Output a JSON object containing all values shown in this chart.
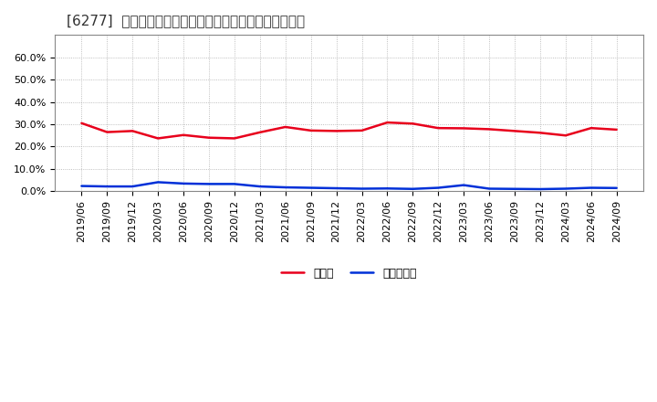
{
  "title": "[6277]  現預金、有利子負債の総資産に対する比率の推移",
  "x_labels": [
    "2019/06",
    "2019/09",
    "2019/12",
    "2020/03",
    "2020/06",
    "2020/09",
    "2020/12",
    "2021/03",
    "2021/06",
    "2021/09",
    "2021/12",
    "2022/03",
    "2022/06",
    "2022/09",
    "2022/12",
    "2023/03",
    "2023/06",
    "2023/09",
    "2023/12",
    "2024/03",
    "2024/06",
    "2024/09"
  ],
  "cash_ratio": [
    0.305,
    0.265,
    0.27,
    0.237,
    0.252,
    0.24,
    0.237,
    0.264,
    0.288,
    0.272,
    0.27,
    0.272,
    0.308,
    0.303,
    0.283,
    0.282,
    0.278,
    0.27,
    0.262,
    0.25,
    0.283,
    0.276
  ],
  "debt_ratio": [
    0.024,
    0.022,
    0.022,
    0.041,
    0.035,
    0.033,
    0.033,
    0.022,
    0.018,
    0.016,
    0.014,
    0.012,
    0.013,
    0.011,
    0.016,
    0.028,
    0.012,
    0.011,
    0.01,
    0.012,
    0.016,
    0.015
  ],
  "cash_color": "#e8001c",
  "debt_color": "#0030d8",
  "background_color": "#ffffff",
  "plot_bg_color": "#ffffff",
  "grid_color": "#aaaaaa",
  "ylim": [
    0.0,
    0.7
  ],
  "yticks": [
    0.0,
    0.1,
    0.2,
    0.3,
    0.4,
    0.5,
    0.6
  ],
  "legend_cash": "現預金",
  "legend_debt": "有利子負債",
  "line_width": 1.8,
  "title_fontsize": 11,
  "tick_fontsize": 8,
  "legend_fontsize": 9
}
